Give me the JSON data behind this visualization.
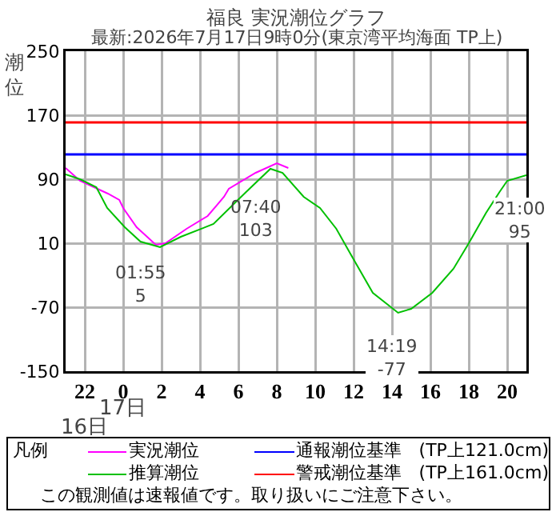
{
  "chart_data": {
    "type": "line",
    "title": "福良 実況潮位グラフ",
    "subtitle": "最新:2026年7月17日9時0分(東京湾平均海面 TP上)",
    "ylabel": "潮位",
    "legend_title": "凡例",
    "legend": "bottom",
    "grid": true,
    "marker": "none",
    "line_style": "solid",
    "xlim": [
      "2026-07-16T21:00",
      "2026-07-17T21:00"
    ],
    "xticks": [
      {
        "value": "2026-07-16T22:00",
        "label": "22"
      },
      {
        "value": "2026-07-17T00:00",
        "label": "0"
      },
      {
        "value": "2026-07-17T02:00",
        "label": "2"
      },
      {
        "value": "2026-07-17T04:00",
        "label": "4"
      },
      {
        "value": "2026-07-17T06:00",
        "label": "6"
      },
      {
        "value": "2026-07-17T08:00",
        "label": "8"
      },
      {
        "value": "2026-07-17T10:00",
        "label": "10"
      },
      {
        "value": "2026-07-17T12:00",
        "label": "12"
      },
      {
        "value": "2026-07-17T14:00",
        "label": "14"
      },
      {
        "value": "2026-07-17T16:00",
        "label": "16"
      },
      {
        "value": "2026-07-17T18:00",
        "label": "18"
      },
      {
        "value": "2026-07-17T20:00",
        "label": "20"
      }
    ],
    "ylim": [
      -150,
      250
    ],
    "yticks": [
      -150,
      -70,
      10,
      90,
      170,
      250
    ],
    "series": [
      {
        "name": "実況潮位",
        "color": "#ff00ff",
        "x": [
          "2026-07-16T21:00",
          "2026-07-16T21:45",
          "2026-07-16T23:12",
          "2026-07-16T23:48",
          "2026-07-17T00:00",
          "2026-07-17T00:42",
          "2026-07-17T01:42",
          "2026-07-17T02:12",
          "2026-07-17T03:18",
          "2026-07-17T04:24",
          "2026-07-17T05:15",
          "2026-07-17T05:30",
          "2026-07-17T06:54",
          "2026-07-17T08:00",
          "2026-07-17T08:36"
        ],
        "values": [
          104,
          88,
          72,
          64,
          54,
          30,
          8,
          10,
          28,
          44,
          68,
          78,
          98,
          110,
          104
        ]
      },
      {
        "name": "推算潮位",
        "color": "#00c000",
        "x": [
          "2026-07-16T21:00",
          "2026-07-16T21:45",
          "2026-07-16T22:36",
          "2026-07-16T23:10",
          "2026-07-17T00:05",
          "2026-07-17T00:54",
          "2026-07-17T01:55",
          "2026-07-17T03:00",
          "2026-07-17T04:42",
          "2026-07-17T05:48",
          "2026-07-17T06:24",
          "2026-07-17T07:40",
          "2026-07-17T08:18",
          "2026-07-17T09:24",
          "2026-07-17T10:15",
          "2026-07-17T11:06",
          "2026-07-17T11:54",
          "2026-07-17T13:00",
          "2026-07-17T14:19",
          "2026-07-17T15:00",
          "2026-07-17T16:06",
          "2026-07-17T17:12",
          "2026-07-17T18:00",
          "2026-07-17T18:54",
          "2026-07-17T19:36",
          "2026-07-17T20:00",
          "2026-07-17T21:00"
        ],
        "values": [
          96,
          90,
          80,
          54,
          30,
          12,
          5,
          18,
          34,
          60,
          74,
          103,
          98,
          68,
          54,
          28,
          -6,
          -52,
          -77,
          -72,
          -52,
          -22,
          10,
          48,
          74,
          88,
          95
        ]
      }
    ],
    "ref_lines": [
      {
        "axis": "y",
        "value": 121,
        "label": "通報潮位基準　(TP上121.0cm)",
        "color": "#0000ff"
      },
      {
        "axis": "y",
        "value": 161,
        "label": "警戒潮位基準　(TP上161.0cm)",
        "color": "#ff0000"
      }
    ],
    "annotations": [
      {
        "text": "01:55\n5",
        "x": "2026-07-17T01:55",
        "y": 5
      },
      {
        "text": "07:40\n103",
        "x": "2026-07-17T07:40",
        "y": 103
      },
      {
        "text": "14:19\n-77",
        "x": "2026-07-17T14:19",
        "y": -77
      },
      {
        "text": "21:00\n95",
        "x": "2026-07-17T21:00",
        "y": 95
      },
      "17日",
      "16日",
      "この観測値は速報値です。取り扱いにご注意下さい。"
    ]
  }
}
